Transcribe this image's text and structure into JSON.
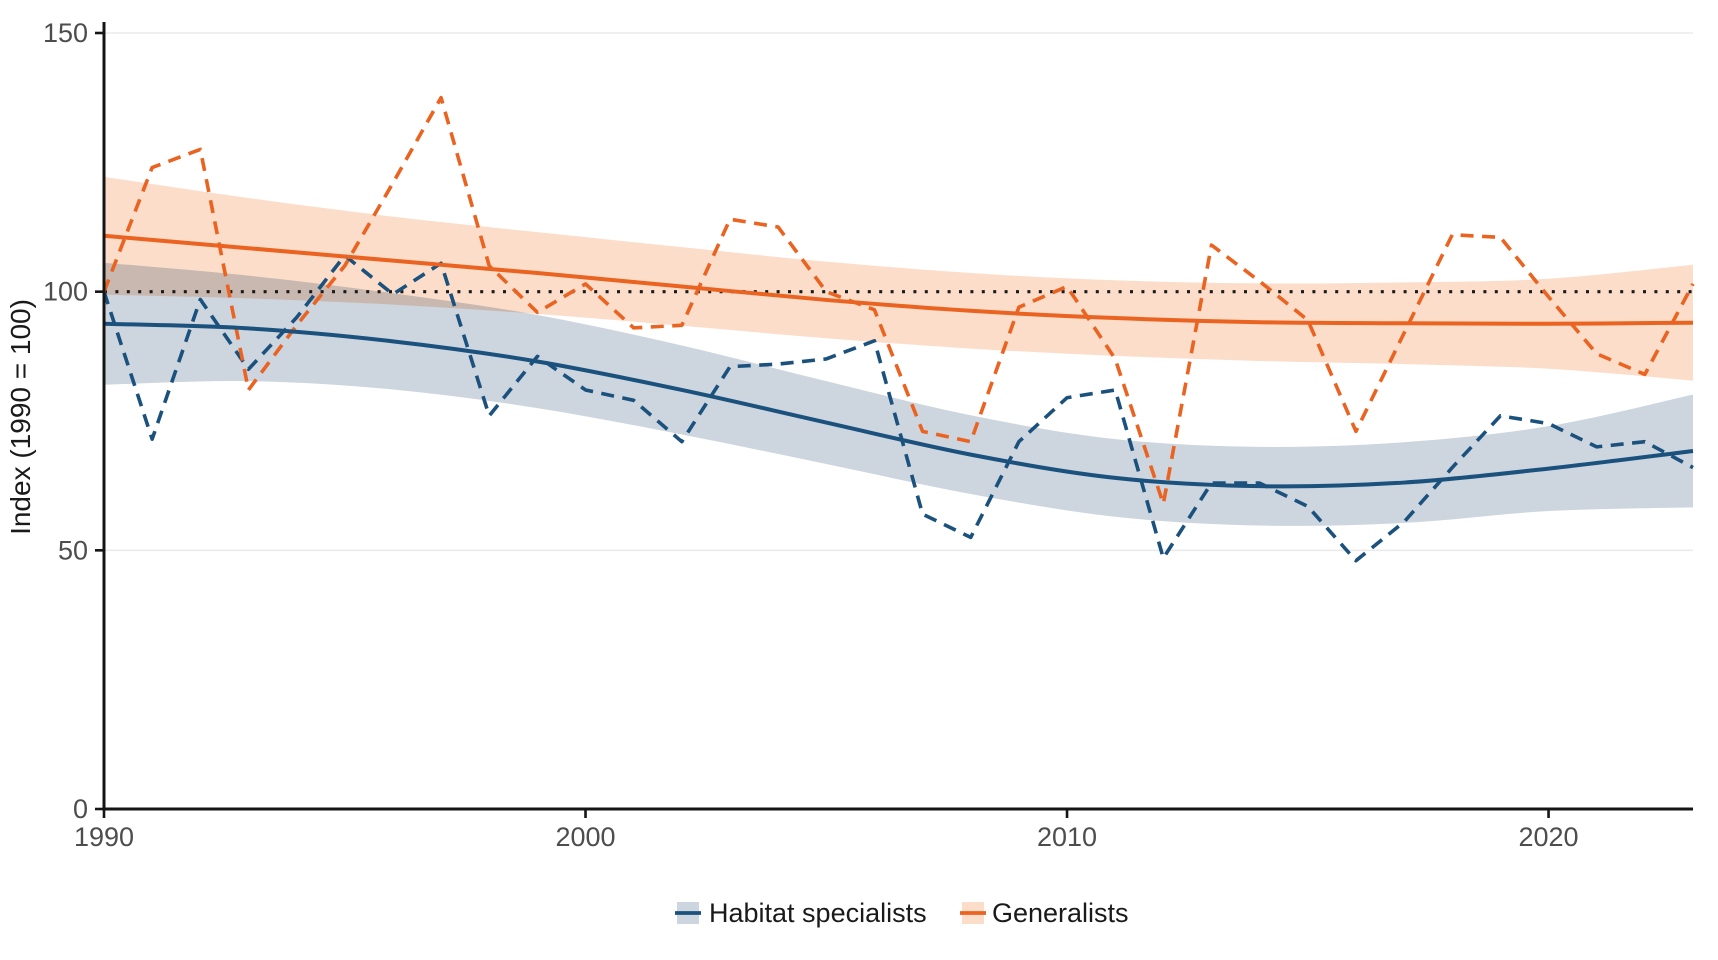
{
  "chart_data": {
    "type": "line",
    "title": "",
    "xlabel": "",
    "ylabel": "Index (1990 = 100)",
    "xlim": [
      1990,
      2023
    ],
    "ylim": [
      0,
      150
    ],
    "x_ticks": [
      1990,
      2000,
      2010,
      2020
    ],
    "y_ticks": [
      0,
      50,
      100,
      150
    ],
    "grid": "horizontal-only",
    "legend_position": "bottom-center",
    "reference_line": {
      "y": 100,
      "style": "dotted",
      "color": "#1A1A1A"
    },
    "background_color": "#FFFFFF",
    "grid_color": "#EBEBEB",
    "axis_color": "#151515",
    "tick_label_color": "#4D4D4D",
    "years": [
      1990,
      1991,
      1992,
      1993,
      1994,
      1995,
      1996,
      1997,
      1998,
      1999,
      2000,
      2001,
      2002,
      2003,
      2004,
      2005,
      2006,
      2007,
      2008,
      2009,
      2010,
      2011,
      2012,
      2013,
      2014,
      2015,
      2016,
      2017,
      2018,
      2019,
      2020,
      2021,
      2022,
      2023
    ],
    "series": [
      {
        "name": "Habitat specialists",
        "role": "annual-index",
        "line_style": "dashed",
        "color": "#1B517D",
        "ribbon_color": "#CDD5DF",
        "values": [
          100,
          71.5,
          98.5,
          85,
          95,
          107,
          99.5,
          105.5,
          76,
          87.5,
          81,
          79,
          71,
          85.5,
          86,
          87,
          90.5,
          57,
          52.5,
          71,
          79.5,
          81,
          48.5,
          63,
          63,
          58.5,
          48,
          55.5,
          66,
          76,
          74.5,
          70,
          71,
          66
        ]
      },
      {
        "name": "Generalists",
        "role": "annual-index",
        "line_style": "dashed",
        "color": "#EA6321",
        "ribbon_color": "#FBDDC9",
        "values": [
          100,
          124,
          127.5,
          81,
          93.5,
          105,
          121,
          137.5,
          105,
          96,
          101.5,
          93,
          93.5,
          114,
          112.5,
          100,
          96.5,
          73,
          71,
          97,
          101,
          87,
          59,
          109,
          102,
          94.5,
          73,
          92,
          111,
          110.5,
          99,
          88,
          84,
          101.5
        ]
      }
    ],
    "trends": [
      {
        "name": "Habitat specialists trend",
        "series": "Habitat specialists",
        "line_style": "solid",
        "color": "#1B517D",
        "ribbon_color": "#CDD5DF",
        "points": [
          {
            "year": 1990,
            "value": 93.8,
            "ci_half_width": 11.8
          },
          {
            "year": 1993,
            "value": 92.9,
            "ci_half_width": 10.2
          },
          {
            "year": 1996,
            "value": 90.4,
            "ci_half_width": 9.3
          },
          {
            "year": 1999,
            "value": 86.5,
            "ci_half_width": 9.0
          },
          {
            "year": 2002,
            "value": 81.0,
            "ci_half_width": 8.6
          },
          {
            "year": 2005,
            "value": 74.7,
            "ci_half_width": 8.0
          },
          {
            "year": 2008,
            "value": 68.5,
            "ci_half_width": 7.6
          },
          {
            "year": 2011,
            "value": 64.0,
            "ci_half_width": 7.5
          },
          {
            "year": 2014,
            "value": 62.4,
            "ci_half_width": 7.6
          },
          {
            "year": 2017,
            "value": 63.1,
            "ci_half_width": 7.8
          },
          {
            "year": 2020,
            "value": 65.8,
            "ci_half_width": 8.2
          },
          {
            "year": 2023,
            "value": 69.2,
            "ci_half_width": 10.9
          }
        ]
      },
      {
        "name": "Generalists trend",
        "series": "Generalists",
        "line_style": "solid",
        "color": "#EA6321",
        "ribbon_color": "#FBDDC9",
        "points": [
          {
            "year": 1990,
            "value": 110.8,
            "ci_half_width": 11.4
          },
          {
            "year": 1993,
            "value": 108.4,
            "ci_half_width": 9.7
          },
          {
            "year": 1996,
            "value": 106.0,
            "ci_half_width": 8.5
          },
          {
            "year": 1999,
            "value": 103.6,
            "ci_half_width": 7.9
          },
          {
            "year": 2002,
            "value": 101.0,
            "ci_half_width": 7.6
          },
          {
            "year": 2005,
            "value": 98.4,
            "ci_half_width": 7.4
          },
          {
            "year": 2008,
            "value": 96.3,
            "ci_half_width": 7.3
          },
          {
            "year": 2011,
            "value": 94.9,
            "ci_half_width": 7.3
          },
          {
            "year": 2014,
            "value": 94.1,
            "ci_half_width": 7.5
          },
          {
            "year": 2017,
            "value": 93.9,
            "ci_half_width": 7.9
          },
          {
            "year": 2020,
            "value": 93.8,
            "ci_half_width": 8.7
          },
          {
            "year": 2023,
            "value": 94.0,
            "ci_half_width": 11.2
          }
        ]
      }
    ],
    "legend": {
      "items": [
        {
          "label": "Habitat specialists",
          "line_color": "#1B517D",
          "fill_color": "#CDD5DF"
        },
        {
          "label": "Generalists",
          "line_color": "#EA6321",
          "fill_color": "#FBDDC9"
        }
      ]
    }
  }
}
